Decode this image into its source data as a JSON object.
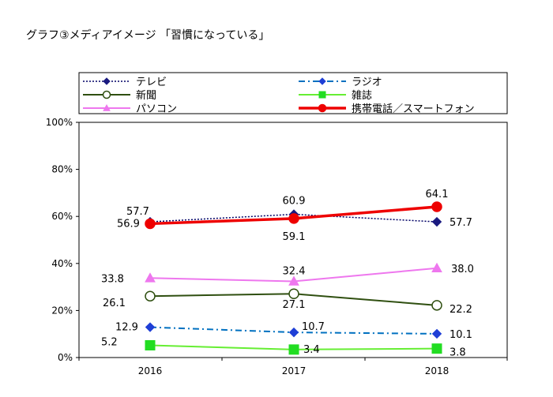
{
  "chart_data": {
    "type": "line",
    "title": "グラフ③メディアイメージ 「習慣になっている」",
    "categories": [
      "2016",
      "2017",
      "2018"
    ],
    "ylim": [
      0,
      100
    ],
    "yticks": [
      "0%",
      "20%",
      "40%",
      "60%",
      "80%",
      "100%"
    ],
    "ytick_values": [
      0,
      20,
      40,
      60,
      80,
      100
    ],
    "legend_position": "top",
    "series": [
      {
        "name": "テレビ",
        "values": [
          57.7,
          60.9,
          57.7
        ],
        "labels": [
          "57.7",
          "60.9",
          "57.7"
        ],
        "color": "#000066",
        "dash": "2,2",
        "marker": "diamond",
        "markerFill": "#1a1a80",
        "width": 1.5
      },
      {
        "name": "ラジオ",
        "values": [
          12.9,
          10.7,
          10.1
        ],
        "labels": [
          "12.9",
          "10.7",
          "10.1"
        ],
        "color": "#0070c0",
        "dash": "8,4,2,4",
        "marker": "diamond",
        "markerFill": "#1f3fd6",
        "width": 2
      },
      {
        "name": "新聞",
        "values": [
          26.1,
          27.1,
          22.2
        ],
        "labels": [
          "26.1",
          "27.1",
          "22.2"
        ],
        "color": "#2f4f10",
        "dash": "",
        "marker": "circle",
        "markerFill": "#ffffff",
        "width": 2
      },
      {
        "name": "雑誌",
        "values": [
          5.2,
          3.4,
          3.8
        ],
        "labels": [
          "5.2",
          "3.4",
          "3.8"
        ],
        "color": "#66ee33",
        "dash": "",
        "marker": "square",
        "markerFill": "#22dd22",
        "width": 2
      },
      {
        "name": "パソコン",
        "values": [
          33.8,
          32.4,
          38.0
        ],
        "labels": [
          "33.8",
          "32.4",
          "38.0"
        ],
        "color": "#ee77ee",
        "dash": "",
        "marker": "triangle",
        "markerFill": "#ee77ee",
        "width": 2
      },
      {
        "name": "携帯電話／スマートフォン",
        "values": [
          56.9,
          59.1,
          64.1
        ],
        "labels": [
          "56.9",
          "59.1",
          "64.1"
        ],
        "color": "#ee0000",
        "dash": "",
        "marker": "circle",
        "markerFill": "#ee0000",
        "width": 3.5
      }
    ]
  }
}
